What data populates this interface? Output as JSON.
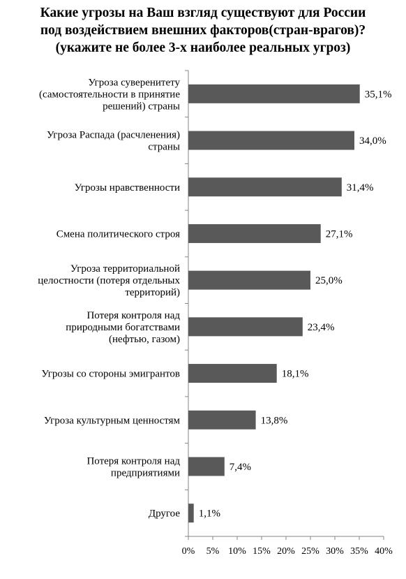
{
  "chart_data": {
    "type": "bar",
    "orientation": "horizontal",
    "title_lines": [
      "Какие угрозы на Ваш взгляд существуют для России",
      "под воздействием внешних факторов(стран-врагов)?",
      "(укажите не более 3-х наиболее реальных угроз)"
    ],
    "categories": [
      [
        "Угроза суверенитету",
        "(самостоятельности в принятие",
        "решений) страны"
      ],
      [
        "Угроза Распада (расчленения)",
        "страны"
      ],
      [
        "Угрозы нравственности"
      ],
      [
        "Смена политического строя"
      ],
      [
        "Угроза территориальной",
        "целостности (потеря отдельных",
        "территорий)"
      ],
      [
        "Потеря контроля над",
        "природными богатствами",
        "(нефтью, газом)"
      ],
      [
        "Угрозы со стороны эмигрантов"
      ],
      [
        "Угроза культурным ценностям"
      ],
      [
        "Потеря контроля над",
        "предприятиями"
      ],
      [
        "Другое"
      ]
    ],
    "values": [
      35.1,
      34.0,
      31.4,
      27.1,
      25.0,
      23.4,
      18.1,
      13.8,
      7.4,
      1.1
    ],
    "data_labels": [
      "35,1%",
      "34,0%",
      "31,4%",
      "27,1%",
      "25,0%",
      "23,4%",
      "18,1%",
      "13,8%",
      "7,4%",
      "1,1%"
    ],
    "x_ticks": [
      "0%",
      "5%",
      "10%",
      "15%",
      "20%",
      "25%",
      "30%",
      "35%",
      "40%"
    ],
    "xlim": [
      0,
      40
    ],
    "bar_color": "#595959",
    "grid": false,
    "legend": "none"
  }
}
